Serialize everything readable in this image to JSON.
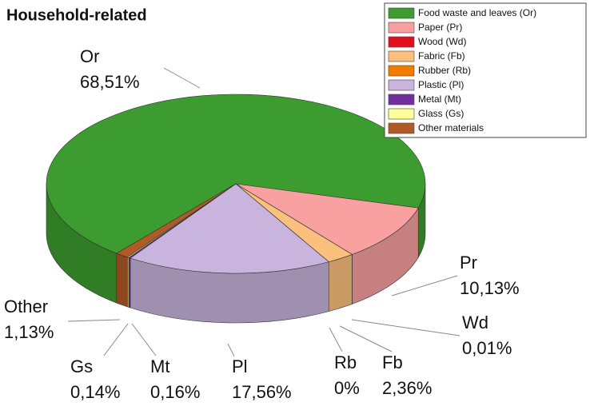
{
  "chart_data": {
    "type": "pie",
    "title": "Household-related",
    "categories": [
      "Food waste and leaves (Or)",
      "Paper (Pr)",
      "Wood (Wd)",
      "Fabric (Fb)",
      "Rubber (Rb)",
      "Plastic (Pl)",
      "Metal (Mt)",
      "Glass (Gs)",
      "Other materials"
    ],
    "labels": [
      "Or",
      "Pr",
      "Wd",
      "Fb",
      "Rb",
      "Pl",
      "Mt",
      "Gs",
      "Other"
    ],
    "values": [
      68.51,
      10.13,
      0.01,
      2.36,
      0,
      17.56,
      0.16,
      0.14,
      1.13
    ],
    "value_labels": [
      "68,51%",
      "10,13%",
      "0,01%",
      "2,36%",
      "0%",
      "17,56%",
      "0,16%",
      "0,14%",
      "1,13%"
    ],
    "colors": [
      "#3c9c30",
      "#f9a0a0",
      "#e0101e",
      "#fcc07e",
      "#f07c00",
      "#c8b4dc",
      "#7030a0",
      "#ffff99",
      "#b05a28"
    ],
    "legend": "upper right"
  }
}
